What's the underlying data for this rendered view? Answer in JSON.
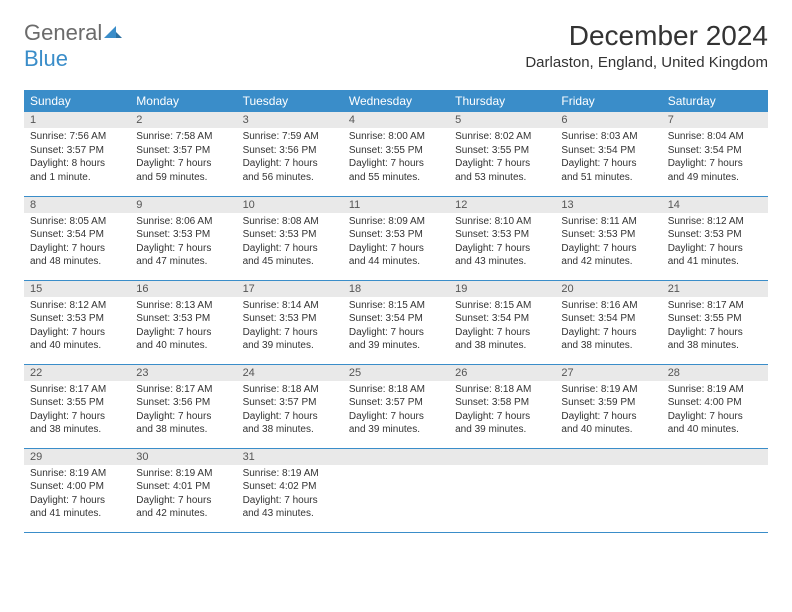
{
  "brand": {
    "general": "General",
    "blue": "Blue"
  },
  "title": "December 2024",
  "location": "Darlaston, England, United Kingdom",
  "colors": {
    "accent": "#3a8dc9",
    "daynum_bg": "#e9e9e9",
    "text": "#333333"
  },
  "weekdays": [
    "Sunday",
    "Monday",
    "Tuesday",
    "Wednesday",
    "Thursday",
    "Friday",
    "Saturday"
  ],
  "weeks": [
    [
      {
        "n": "1",
        "sr": "Sunrise: 7:56 AM",
        "ss": "Sunset: 3:57 PM",
        "dl": "Daylight: 8 hours and 1 minute."
      },
      {
        "n": "2",
        "sr": "Sunrise: 7:58 AM",
        "ss": "Sunset: 3:57 PM",
        "dl": "Daylight: 7 hours and 59 minutes."
      },
      {
        "n": "3",
        "sr": "Sunrise: 7:59 AM",
        "ss": "Sunset: 3:56 PM",
        "dl": "Daylight: 7 hours and 56 minutes."
      },
      {
        "n": "4",
        "sr": "Sunrise: 8:00 AM",
        "ss": "Sunset: 3:55 PM",
        "dl": "Daylight: 7 hours and 55 minutes."
      },
      {
        "n": "5",
        "sr": "Sunrise: 8:02 AM",
        "ss": "Sunset: 3:55 PM",
        "dl": "Daylight: 7 hours and 53 minutes."
      },
      {
        "n": "6",
        "sr": "Sunrise: 8:03 AM",
        "ss": "Sunset: 3:54 PM",
        "dl": "Daylight: 7 hours and 51 minutes."
      },
      {
        "n": "7",
        "sr": "Sunrise: 8:04 AM",
        "ss": "Sunset: 3:54 PM",
        "dl": "Daylight: 7 hours and 49 minutes."
      }
    ],
    [
      {
        "n": "8",
        "sr": "Sunrise: 8:05 AM",
        "ss": "Sunset: 3:54 PM",
        "dl": "Daylight: 7 hours and 48 minutes."
      },
      {
        "n": "9",
        "sr": "Sunrise: 8:06 AM",
        "ss": "Sunset: 3:53 PM",
        "dl": "Daylight: 7 hours and 47 minutes."
      },
      {
        "n": "10",
        "sr": "Sunrise: 8:08 AM",
        "ss": "Sunset: 3:53 PM",
        "dl": "Daylight: 7 hours and 45 minutes."
      },
      {
        "n": "11",
        "sr": "Sunrise: 8:09 AM",
        "ss": "Sunset: 3:53 PM",
        "dl": "Daylight: 7 hours and 44 minutes."
      },
      {
        "n": "12",
        "sr": "Sunrise: 8:10 AM",
        "ss": "Sunset: 3:53 PM",
        "dl": "Daylight: 7 hours and 43 minutes."
      },
      {
        "n": "13",
        "sr": "Sunrise: 8:11 AM",
        "ss": "Sunset: 3:53 PM",
        "dl": "Daylight: 7 hours and 42 minutes."
      },
      {
        "n": "14",
        "sr": "Sunrise: 8:12 AM",
        "ss": "Sunset: 3:53 PM",
        "dl": "Daylight: 7 hours and 41 minutes."
      }
    ],
    [
      {
        "n": "15",
        "sr": "Sunrise: 8:12 AM",
        "ss": "Sunset: 3:53 PM",
        "dl": "Daylight: 7 hours and 40 minutes."
      },
      {
        "n": "16",
        "sr": "Sunrise: 8:13 AM",
        "ss": "Sunset: 3:53 PM",
        "dl": "Daylight: 7 hours and 40 minutes."
      },
      {
        "n": "17",
        "sr": "Sunrise: 8:14 AM",
        "ss": "Sunset: 3:53 PM",
        "dl": "Daylight: 7 hours and 39 minutes."
      },
      {
        "n": "18",
        "sr": "Sunrise: 8:15 AM",
        "ss": "Sunset: 3:54 PM",
        "dl": "Daylight: 7 hours and 39 minutes."
      },
      {
        "n": "19",
        "sr": "Sunrise: 8:15 AM",
        "ss": "Sunset: 3:54 PM",
        "dl": "Daylight: 7 hours and 38 minutes."
      },
      {
        "n": "20",
        "sr": "Sunrise: 8:16 AM",
        "ss": "Sunset: 3:54 PM",
        "dl": "Daylight: 7 hours and 38 minutes."
      },
      {
        "n": "21",
        "sr": "Sunrise: 8:17 AM",
        "ss": "Sunset: 3:55 PM",
        "dl": "Daylight: 7 hours and 38 minutes."
      }
    ],
    [
      {
        "n": "22",
        "sr": "Sunrise: 8:17 AM",
        "ss": "Sunset: 3:55 PM",
        "dl": "Daylight: 7 hours and 38 minutes."
      },
      {
        "n": "23",
        "sr": "Sunrise: 8:17 AM",
        "ss": "Sunset: 3:56 PM",
        "dl": "Daylight: 7 hours and 38 minutes."
      },
      {
        "n": "24",
        "sr": "Sunrise: 8:18 AM",
        "ss": "Sunset: 3:57 PM",
        "dl": "Daylight: 7 hours and 38 minutes."
      },
      {
        "n": "25",
        "sr": "Sunrise: 8:18 AM",
        "ss": "Sunset: 3:57 PM",
        "dl": "Daylight: 7 hours and 39 minutes."
      },
      {
        "n": "26",
        "sr": "Sunrise: 8:18 AM",
        "ss": "Sunset: 3:58 PM",
        "dl": "Daylight: 7 hours and 39 minutes."
      },
      {
        "n": "27",
        "sr": "Sunrise: 8:19 AM",
        "ss": "Sunset: 3:59 PM",
        "dl": "Daylight: 7 hours and 40 minutes."
      },
      {
        "n": "28",
        "sr": "Sunrise: 8:19 AM",
        "ss": "Sunset: 4:00 PM",
        "dl": "Daylight: 7 hours and 40 minutes."
      }
    ],
    [
      {
        "n": "29",
        "sr": "Sunrise: 8:19 AM",
        "ss": "Sunset: 4:00 PM",
        "dl": "Daylight: 7 hours and 41 minutes."
      },
      {
        "n": "30",
        "sr": "Sunrise: 8:19 AM",
        "ss": "Sunset: 4:01 PM",
        "dl": "Daylight: 7 hours and 42 minutes."
      },
      {
        "n": "31",
        "sr": "Sunrise: 8:19 AM",
        "ss": "Sunset: 4:02 PM",
        "dl": "Daylight: 7 hours and 43 minutes."
      },
      {
        "empty": true
      },
      {
        "empty": true
      },
      {
        "empty": true
      },
      {
        "empty": true
      }
    ]
  ]
}
